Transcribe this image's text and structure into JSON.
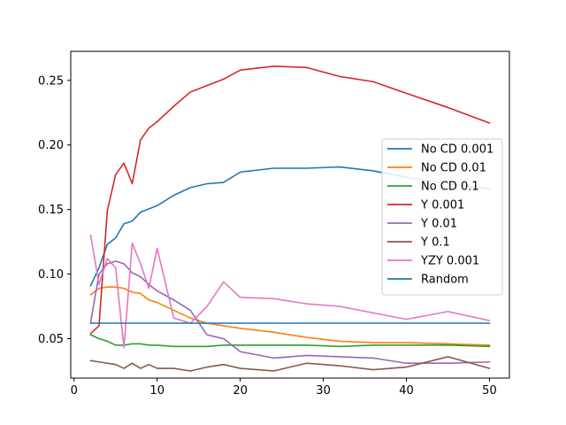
{
  "chart_data": {
    "type": "line",
    "title": "",
    "xlabel": "",
    "ylabel": "",
    "xlim": [
      -0.4,
      52.4
    ],
    "ylim": [
      0.0195,
      0.2725
    ],
    "xticks": [
      0,
      10,
      20,
      30,
      40,
      50
    ],
    "xtick_labels": [
      "0",
      "10",
      "20",
      "30",
      "40",
      "50"
    ],
    "yticks": [
      0.05,
      0.1,
      0.15,
      0.2,
      0.25
    ],
    "ytick_labels": [
      "0.05",
      "0.10",
      "0.15",
      "0.20",
      "0.25"
    ],
    "grid": false,
    "legend_placement": "center-right",
    "series": [
      {
        "name": "No CD 0.001",
        "color": "#1f77b4",
        "x": [
          2,
          3,
          4,
          5,
          6,
          7,
          8,
          10,
          12,
          14,
          16,
          18,
          20,
          24,
          28,
          32,
          36,
          40,
          45,
          50
        ],
        "y": [
          0.091,
          0.105,
          0.123,
          0.128,
          0.139,
          0.141,
          0.148,
          0.153,
          0.161,
          0.167,
          0.17,
          0.171,
          0.179,
          0.182,
          0.182,
          0.183,
          0.18,
          0.175,
          0.17,
          0.166
        ]
      },
      {
        "name": "No CD 0.01",
        "color": "#ff7f0e",
        "x": [
          2,
          3,
          4,
          5,
          6,
          7,
          8,
          9,
          10,
          12,
          14,
          16,
          18,
          20,
          24,
          28,
          32,
          36,
          40,
          45,
          50
        ],
        "y": [
          0.084,
          0.089,
          0.09,
          0.09,
          0.089,
          0.086,
          0.085,
          0.08,
          0.078,
          0.072,
          0.066,
          0.062,
          0.06,
          0.058,
          0.055,
          0.051,
          0.048,
          0.047,
          0.047,
          0.046,
          0.045
        ]
      },
      {
        "name": "No CD 0.1",
        "color": "#2ca02c",
        "x": [
          2,
          3,
          4,
          5,
          6,
          7,
          8,
          9,
          10,
          12,
          14,
          16,
          18,
          20,
          24,
          28,
          32,
          36,
          40,
          45,
          50
        ],
        "y": [
          0.053,
          0.05,
          0.048,
          0.045,
          0.045,
          0.046,
          0.046,
          0.045,
          0.045,
          0.044,
          0.044,
          0.044,
          0.045,
          0.045,
          0.045,
          0.045,
          0.044,
          0.045,
          0.045,
          0.045,
          0.044
        ]
      },
      {
        "name": "Y 0.001",
        "color": "#d62728",
        "x": [
          2,
          3,
          4,
          5,
          6,
          7,
          8,
          9,
          10,
          12,
          14,
          16,
          18,
          20,
          24,
          28,
          32,
          36,
          40,
          45,
          50
        ],
        "y": [
          0.054,
          0.06,
          0.149,
          0.177,
          0.186,
          0.17,
          0.204,
          0.213,
          0.218,
          0.23,
          0.241,
          0.246,
          0.251,
          0.258,
          0.261,
          0.26,
          0.253,
          0.249,
          0.24,
          0.229,
          0.217
        ]
      },
      {
        "name": "Y 0.01",
        "color": "#9467bd",
        "x": [
          2,
          3,
          4,
          5,
          6,
          7,
          8,
          9,
          10,
          12,
          14,
          16,
          18,
          20,
          24,
          28,
          32,
          36,
          40,
          45,
          50
        ],
        "y": [
          0.063,
          0.1,
          0.108,
          0.11,
          0.108,
          0.101,
          0.098,
          0.092,
          0.087,
          0.08,
          0.072,
          0.053,
          0.05,
          0.04,
          0.035,
          0.037,
          0.036,
          0.035,
          0.031,
          0.031,
          0.032
        ]
      },
      {
        "name": "Y 0.1",
        "color": "#8c564b",
        "x": [
          2,
          3,
          4,
          5,
          6,
          7,
          8,
          9,
          10,
          12,
          14,
          16,
          18,
          20,
          24,
          28,
          32,
          36,
          40,
          45,
          50
        ],
        "y": [
          0.033,
          0.032,
          0.031,
          0.03,
          0.027,
          0.031,
          0.027,
          0.03,
          0.027,
          0.027,
          0.025,
          0.028,
          0.03,
          0.027,
          0.025,
          0.031,
          0.029,
          0.026,
          0.028,
          0.036,
          0.027
        ]
      },
      {
        "name": "YZY 0.001",
        "color": "#e377c2",
        "x": [
          2,
          3,
          4,
          5,
          6,
          7,
          8,
          9,
          10,
          12,
          14,
          16,
          18,
          20,
          24,
          28,
          32,
          36,
          40,
          45,
          50
        ],
        "y": [
          0.13,
          0.092,
          0.112,
          0.105,
          0.043,
          0.124,
          0.108,
          0.089,
          0.12,
          0.066,
          0.062,
          0.075,
          0.094,
          0.082,
          0.081,
          0.077,
          0.075,
          0.07,
          0.065,
          0.071,
          0.064
        ]
      },
      {
        "name": "Random",
        "color": "#1f77b4",
        "x": [
          2,
          50
        ],
        "y": [
          0.062,
          0.062
        ]
      }
    ]
  }
}
